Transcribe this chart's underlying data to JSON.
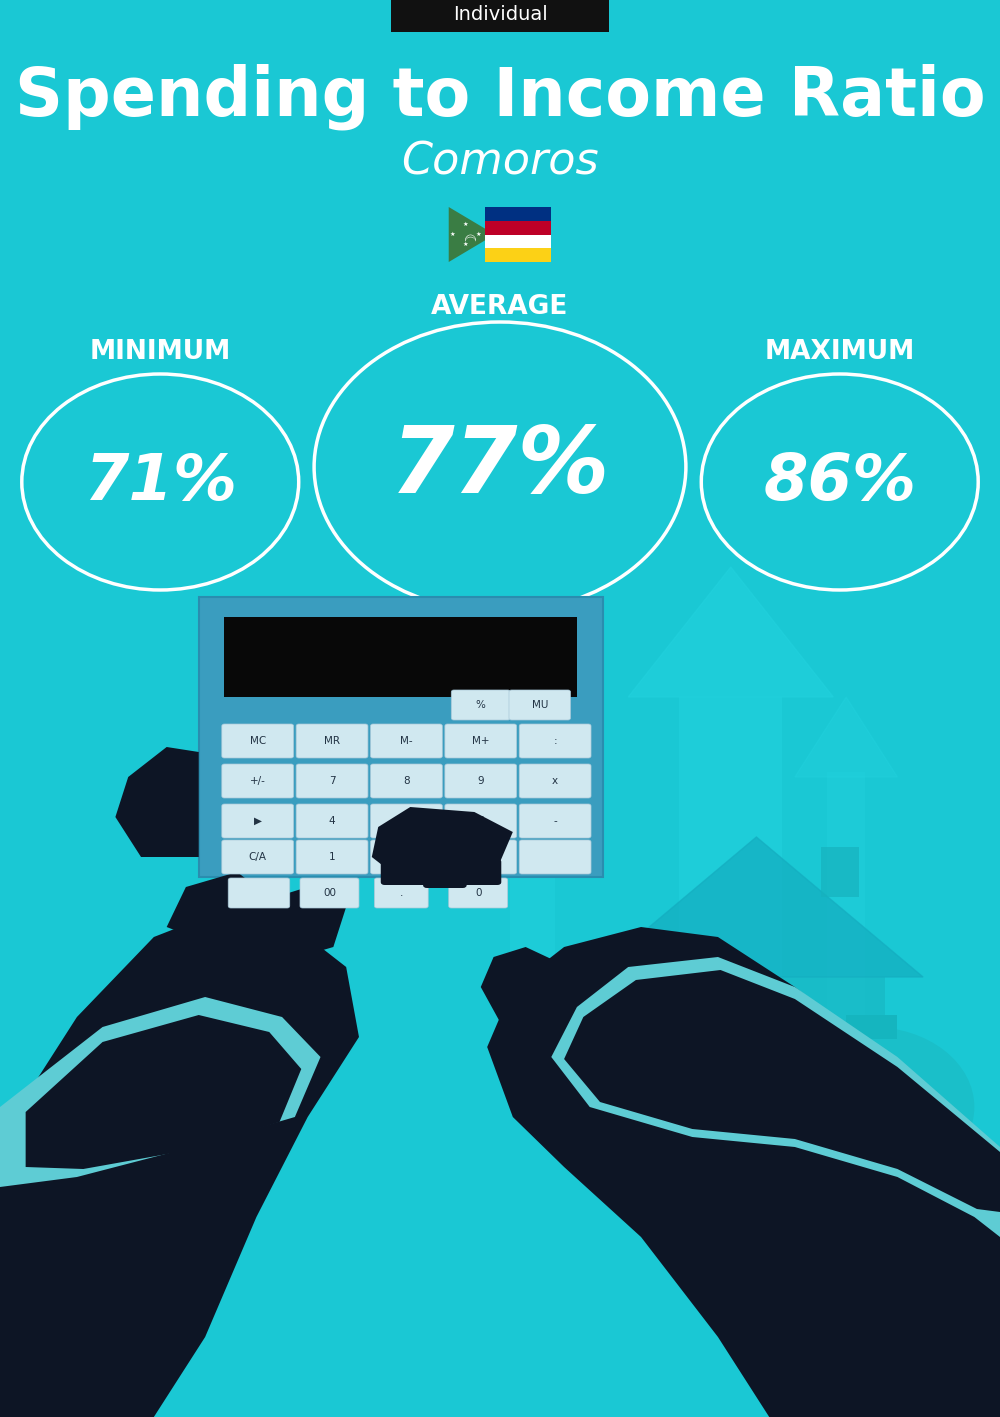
{
  "title": "Spending to Income Ratio",
  "country": "Comoros",
  "category_label": "Individual",
  "bg_color": "#1AC8D4",
  "text_color": "#FFFFFF",
  "black_color": "#111111",
  "min_value": "71%",
  "avg_value": "77%",
  "max_value": "86%",
  "min_label": "MINIMUM",
  "avg_label": "AVERAGE",
  "max_label": "MAXIMUM",
  "title_fontsize": 48,
  "country_fontsize": 32,
  "category_fontsize": 14,
  "label_fontsize": 19,
  "circle_small_fontsize": 46,
  "circle_large_fontsize": 66,
  "circle_color": "#FFFFFF",
  "circle_linewidth": 2.5,
  "arrow_color": "#20CDD8",
  "calc_body_color": "#2A8FA8",
  "calc_dark_color": "#0A1520",
  "hand_color": "#0D1525",
  "sleeve_color": "#5ECCD4",
  "house_color": "#18B8C4",
  "bag_color": "#1ABFC9",
  "flag_green": "#3A7D44",
  "flag_yellow": "#FCD116",
  "flag_white": "#FFFFFF",
  "flag_red": "#BE0027",
  "flag_blue": "#003082"
}
